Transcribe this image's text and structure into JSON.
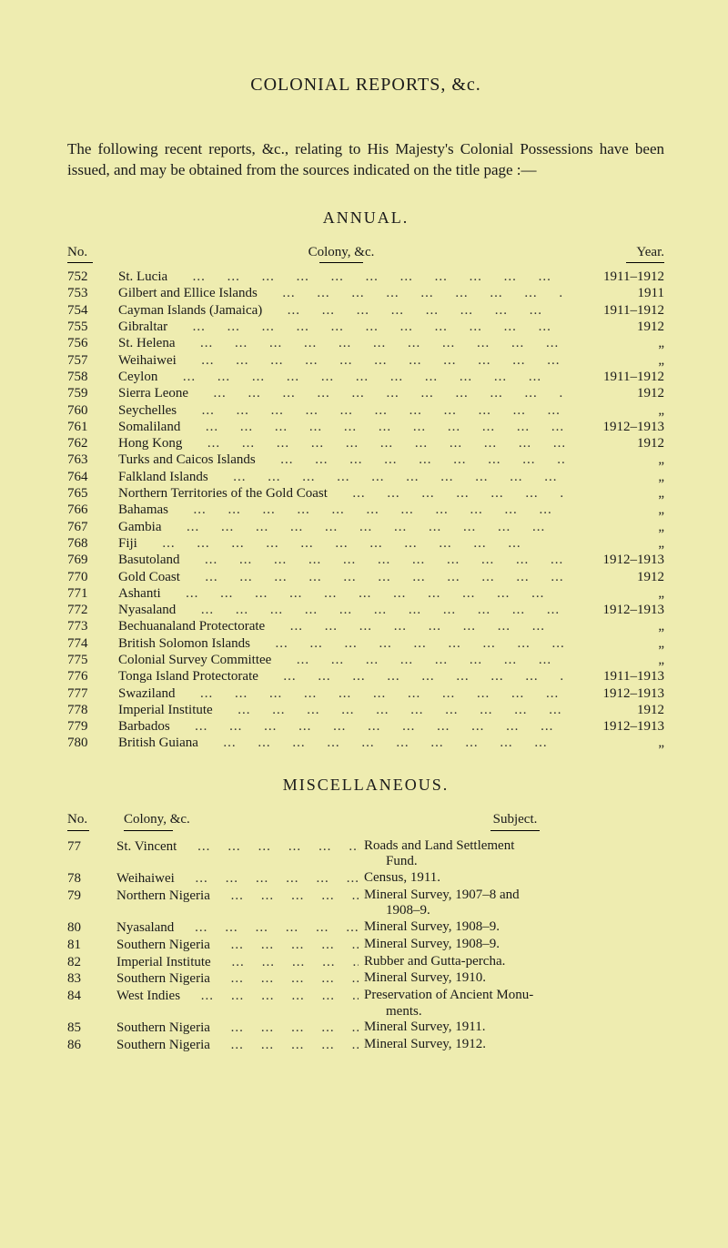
{
  "background_color": "#eeecb0",
  "title": "COLONIAL REPORTS, &c.",
  "intro": "The following recent reports, &c., relating to His Majesty's Colonial Possessions have been issued, and may be obtained from the sources indicated on the title page :—",
  "annual": {
    "heading": "ANNUAL.",
    "col_no": "No.",
    "col_mid": "Colony, &c.",
    "col_year": "Year.",
    "ditto": "„",
    "rows": [
      {
        "no": "752",
        "name": "St. Lucia",
        "year": "1911–1912"
      },
      {
        "no": "753",
        "name": "Gilbert and Ellice Islands",
        "year": "1911"
      },
      {
        "no": "754",
        "name": "Cayman Islands (Jamaica)",
        "year": "1911–1912"
      },
      {
        "no": "755",
        "name": "Gibraltar",
        "year": "1912"
      },
      {
        "no": "756",
        "name": "St. Helena",
        "year": "„"
      },
      {
        "no": "757",
        "name": "Weihaiwei",
        "year": "„"
      },
      {
        "no": "758",
        "name": "Ceylon",
        "year": "1911–1912"
      },
      {
        "no": "759",
        "name": "Sierra Leone",
        "year": "1912"
      },
      {
        "no": "760",
        "name": "Seychelles",
        "year": "„"
      },
      {
        "no": "761",
        "name": "Somaliland",
        "year": "1912–1913"
      },
      {
        "no": "762",
        "name": "Hong Kong",
        "year": "1912"
      },
      {
        "no": "763",
        "name": "Turks and Caicos Islands",
        "year": "„"
      },
      {
        "no": "764",
        "name": "Falkland Islands",
        "year": "„"
      },
      {
        "no": "765",
        "name": "Northern Territories of the Gold Coast",
        "year": "„"
      },
      {
        "no": "766",
        "name": "Bahamas",
        "year": "„"
      },
      {
        "no": "767",
        "name": "Gambia",
        "year": "„"
      },
      {
        "no": "768",
        "name": "Fiji",
        "year": "„"
      },
      {
        "no": "769",
        "name": "Basutoland",
        "year": "1912–1913"
      },
      {
        "no": "770",
        "name": "Gold Coast",
        "year": "1912"
      },
      {
        "no": "771",
        "name": "Ashanti",
        "year": "„"
      },
      {
        "no": "772",
        "name": "Nyasaland",
        "year": "1912–1913"
      },
      {
        "no": "773",
        "name": "Bechuanaland Protectorate",
        "year": "„"
      },
      {
        "no": "774",
        "name": "British Solomon Islands",
        "year": "„"
      },
      {
        "no": "775",
        "name": "Colonial Survey Committee",
        "year": "„"
      },
      {
        "no": "776",
        "name": "Tonga Island Protectorate",
        "year": "1911–1913"
      },
      {
        "no": "777",
        "name": "Swaziland",
        "year": "1912–1913"
      },
      {
        "no": "778",
        "name": "Imperial Institute",
        "year": "1912"
      },
      {
        "no": "779",
        "name": "Barbados",
        "year": "1912–1913"
      },
      {
        "no": "780",
        "name": "British Guiana",
        "year": "„"
      }
    ]
  },
  "misc": {
    "heading": "MISCELLANEOUS.",
    "col_no": "No.",
    "col_col": "Colony, &c.",
    "col_sub": "Subject.",
    "rows": [
      {
        "no": "77",
        "col": "St. Vincent",
        "sub": "Roads and Land Settlement",
        "sub2": "Fund."
      },
      {
        "no": "78",
        "col": "Weihaiwei",
        "sub": "Census, 1911."
      },
      {
        "no": "79",
        "col": "Northern Nigeria",
        "sub": "Mineral Survey, 1907–8 and",
        "sub2": "1908–9."
      },
      {
        "no": "80",
        "col": "Nyasaland",
        "sub": "Mineral Survey, 1908–9."
      },
      {
        "no": "81",
        "col": "Southern Nigeria",
        "sub": "Mineral Survey, 1908–9."
      },
      {
        "no": "82",
        "col": "Imperial Institute",
        "sub": "Rubber and Gutta-percha."
      },
      {
        "no": "83",
        "col": "Southern Nigeria",
        "sub": "Mineral Survey, 1910."
      },
      {
        "no": "84",
        "col": "West Indies",
        "sub": "Preservation of Ancient Monu-",
        "sub2": "ments."
      },
      {
        "no": "85",
        "col": "Southern Nigeria",
        "sub": "Mineral Survey, 1911."
      },
      {
        "no": "86",
        "col": "Southern Nigeria",
        "sub": "Mineral Survey, 1912."
      }
    ]
  }
}
